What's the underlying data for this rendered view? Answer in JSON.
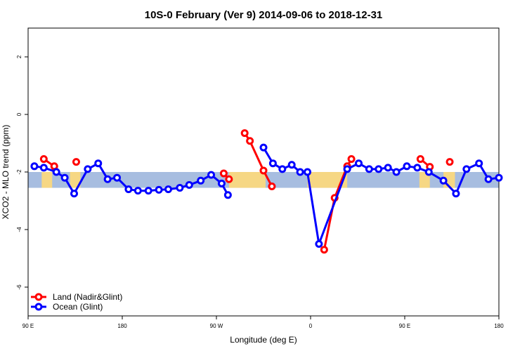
{
  "chart_data": {
    "type": "line",
    "title": "10S-0 February (Ver 9)   2014-09-06 to 2018-12-31",
    "xlabel": "Longitude (deg E)",
    "ylabel": "XCO2 - MLO trend (ppm)",
    "xlim": [
      90,
      540
    ],
    "ylim": [
      -7,
      3
    ],
    "xticks": [
      {
        "value": 90,
        "label": "90 E"
      },
      {
        "value": 180,
        "label": "180"
      },
      {
        "value": 270,
        "label": "90 W"
      },
      {
        "value": 360,
        "label": "0"
      },
      {
        "value": 450,
        "label": "90 E"
      },
      {
        "value": 540,
        "label": "180"
      }
    ],
    "yticks": [
      {
        "value": 2,
        "label": "2"
      },
      {
        "value": 0,
        "label": "0"
      },
      {
        "value": -2,
        "label": "-2"
      },
      {
        "value": -4,
        "label": "-4"
      },
      {
        "value": -6,
        "label": "-6"
      }
    ],
    "background_band": {
      "y_min": -2.55,
      "y_max": -2.0,
      "ocean_color": "#a7bde0",
      "land_color": "#ffd97a"
    },
    "legend_position": "bottom-left",
    "series": [
      {
        "name": "Land (Nadir&Glint)",
        "color": "#ff0000",
        "segments": [
          [
            [
              105,
              -1.55
            ],
            [
              115,
              -1.8
            ]
          ],
          [
            [
              136,
              -1.65
            ]
          ],
          [
            [
              277,
              -2.05
            ],
            [
              282,
              -2.25
            ]
          ],
          [
            [
              297,
              -0.65
            ],
            [
              302,
              -0.92
            ],
            [
              315,
              -1.95
            ],
            [
              323,
              -2.5
            ]
          ],
          [
            [
              373,
              -4.7
            ],
            [
              383,
              -2.9
            ],
            [
              395,
              -1.8
            ],
            [
              399,
              -1.55
            ]
          ],
          [
            [
              465,
              -1.55
            ],
            [
              474,
              -1.82
            ]
          ],
          [
            [
              493,
              -1.65
            ]
          ]
        ]
      },
      {
        "name": "Ocean (Glint)",
        "color": "#0000ff",
        "segments": [
          [
            [
              96,
              -1.8
            ],
            [
              105,
              -1.85
            ],
            [
              117,
              -2.0
            ],
            [
              125,
              -2.2
            ],
            [
              134,
              -2.75
            ],
            [
              147,
              -1.9
            ],
            [
              157,
              -1.7
            ],
            [
              166,
              -2.25
            ],
            [
              175,
              -2.2
            ],
            [
              186,
              -2.6
            ],
            [
              195,
              -2.65
            ],
            [
              205,
              -2.65
            ],
            [
              215,
              -2.62
            ],
            [
              224,
              -2.6
            ],
            [
              235,
              -2.55
            ],
            [
              244,
              -2.45
            ],
            [
              255,
              -2.3
            ],
            [
              265,
              -2.1
            ],
            [
              275,
              -2.4
            ],
            [
              281,
              -2.8
            ]
          ],
          [
            [
              315,
              -1.15
            ],
            [
              324,
              -1.7
            ],
            [
              333,
              -1.9
            ],
            [
              342,
              -1.75
            ],
            [
              350,
              -2.0
            ],
            [
              357,
              -2.0
            ],
            [
              368,
              -4.5
            ],
            [
              395,
              -1.9
            ],
            [
              406,
              -1.7
            ],
            [
              416,
              -1.9
            ],
            [
              425,
              -1.9
            ],
            [
              434,
              -1.85
            ],
            [
              442,
              -2.0
            ],
            [
              452,
              -1.8
            ],
            [
              462,
              -1.85
            ],
            [
              473,
              -2.0
            ],
            [
              487,
              -2.3
            ],
            [
              499,
              -2.75
            ],
            [
              509,
              -1.9
            ],
            [
              521,
              -1.7
            ],
            [
              530,
              -2.25
            ],
            [
              540,
              -2.2
            ]
          ]
        ]
      }
    ]
  }
}
